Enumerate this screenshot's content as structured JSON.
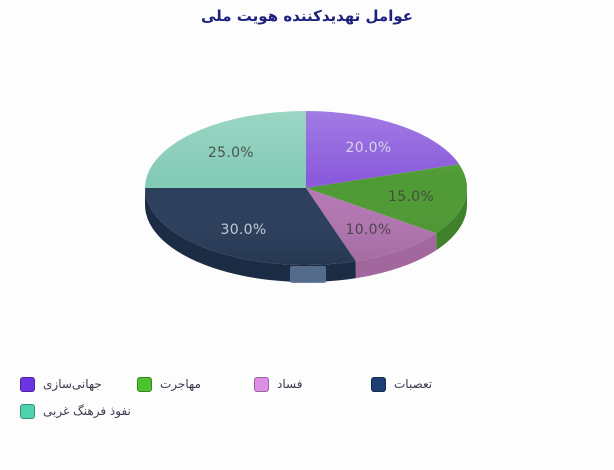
{
  "page": {
    "background": "#fdfdfd"
  },
  "header": {
    "title": "عوامل تهدیدکننده هویت ملی",
    "color": "#1f2180"
  },
  "legend": {
    "position": "bottom-left",
    "rows": 2,
    "items_per_row": 4,
    "text_color": "#3b3b52"
  },
  "chart_data": {
    "type": "pie",
    "style": "3d-ellipse",
    "title": "عوامل تهدیدکننده هویت ملی",
    "unit": "percent",
    "start_angle_deg": 0,
    "direction": "clockwise",
    "legend_position": "bottom",
    "total": 100,
    "slices": [
      {
        "label": "جهانی‌سازی",
        "value": 20,
        "display": "20.0%",
        "color": "#6c35e1",
        "surface_color": "#8a5adc",
        "side_color": "#6a41b2",
        "label_color": "#d9d5e6"
      },
      {
        "label": "مهاجرت",
        "value": 15,
        "display": "15.0%",
        "color": "#4dc22f",
        "surface_color": "#4e9a33",
        "side_color": "#3e8128",
        "label_color": "#474c44"
      },
      {
        "label": "فساد",
        "value": 10,
        "display": "10.0%",
        "color": "#dc8fe5",
        "surface_color": "#b376b2",
        "side_color": "#a2689e",
        "label_color": "#4a464d"
      },
      {
        "label": "تعصبات",
        "value": 30,
        "display": "30.0%",
        "color": "#1d3e72",
        "surface_color": "#2a3d5b",
        "side_color": "#1d2c45",
        "label_color": "#c3cbd7"
      },
      {
        "label": "نفوذ فرهنگ غربی",
        "value": 25,
        "display": "25.0%",
        "color": "#4fd2ae",
        "surface_color": "#83cbb6",
        "side_color": "#5fa890",
        "label_color": "#49544f"
      }
    ]
  }
}
